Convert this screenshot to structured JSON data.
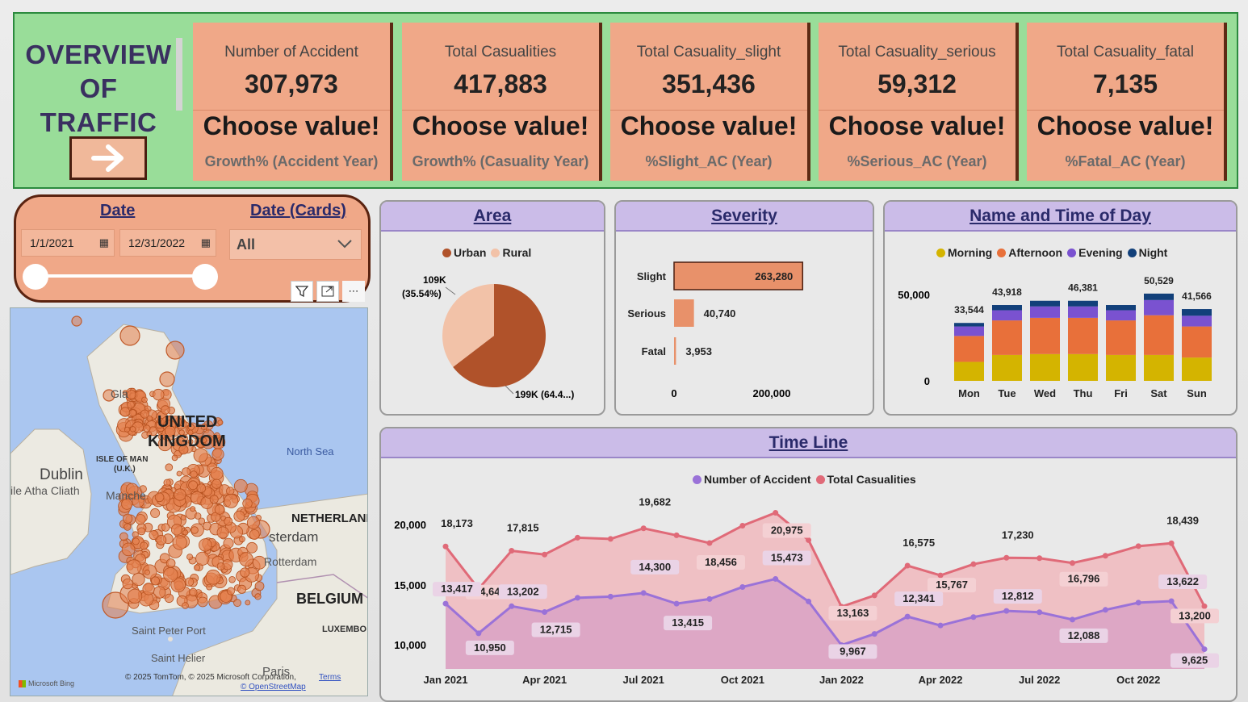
{
  "header": {
    "title_line1": "OVERVIEW",
    "title_line2": "OF TRAFFIC",
    "kpis": [
      {
        "label": "Number of Accident",
        "value": "307,973",
        "choose": "Choose value!",
        "sub": "Growth% (Accident Year)"
      },
      {
        "label": "Total Casualities",
        "value": "417,883",
        "choose": "Choose value!",
        "sub": "Growth% (Casuality Year)"
      },
      {
        "label": "Total Casuality_slight",
        "value": "351,436",
        "choose": "Choose value!",
        "sub": "%Slight_AC (Year)"
      },
      {
        "label": "Total Casuality_serious",
        "value": "59,312",
        "choose": "Choose value!",
        "sub": "%Serious_AC (Year)"
      },
      {
        "label": "Total Casuality_fatal",
        "value": "7,135",
        "choose": "Choose value!",
        "sub": "%Fatal_AC (Year)"
      }
    ]
  },
  "slicer": {
    "date_title": "Date",
    "date_cards_title": "Date (Cards)",
    "start_date": "1/1/2021",
    "end_date": "12/31/2022",
    "dropdown_value": "All"
  },
  "map": {
    "labels": {
      "uk_line1": "UNITED",
      "uk_line2": "KINGDOM",
      "north_sea": "North Sea",
      "isle_of_man": "ISLE OF MAN",
      "isle_of_man_sub": "(U.K.)",
      "dublin": "Dublin",
      "baile": "ile Atha Cliath",
      "manchester": "Manche",
      "netherlands": "NETHERLAND",
      "amsterdam": "sterdam",
      "rotterdam": "Rotterdam",
      "belgium": "BELGIUM",
      "luxembourg": "LUXEMBO",
      "st_peter": "Saint Peter Port",
      "st_helier": "Saint Helier",
      "paris": "Paris",
      "glasgow": "Gla",
      "copyright": "© 2025 TomTom, © 2025 Microsoft Corporation,",
      "terms": "Terms",
      "osm": "© OpenStreetMap",
      "bing": "Microsoft Bing"
    }
  },
  "area": {
    "title": "Area",
    "legend": [
      {
        "name": "Urban",
        "color": "#b0522a"
      },
      {
        "name": "Rural",
        "color": "#f2c2a8"
      }
    ],
    "label_rural_value": "109K",
    "label_rural_pct": "(35.54%)",
    "label_urban": "199K (64.4...)"
  },
  "severity": {
    "title": "Severity",
    "axis_ticks": [
      "0",
      "200,000"
    ]
  },
  "dow": {
    "title": "Name and Time of Day",
    "legend": [
      {
        "name": "Morning",
        "color": "#d4b400"
      },
      {
        "name": "Afternoon",
        "color": "#e8703a"
      },
      {
        "name": "Evening",
        "color": "#7a52d0"
      },
      {
        "name": "Night",
        "color": "#12407a"
      }
    ],
    "y_ticks": [
      "50,000",
      "0"
    ]
  },
  "timeline": {
    "title": "Time Line",
    "legend": [
      {
        "name": "Number of Accident",
        "color": "#9a72d8"
      },
      {
        "name": "Total Casualities",
        "color": "#e06a78"
      }
    ],
    "y_ticks": [
      "20,000",
      "15,000",
      "10,000"
    ],
    "x_ticks": [
      "Jan 2021",
      "Apr 2021",
      "Jul 2021",
      "Oct 2021",
      "Jan 2022",
      "Apr 2022",
      "Jul 2022",
      "Oct 2022"
    ]
  },
  "chart_data": [
    {
      "type": "pie",
      "title": "Area",
      "categories": [
        "Urban",
        "Rural"
      ],
      "values": [
        199000,
        109000
      ],
      "percent": [
        64.46,
        35.54
      ]
    },
    {
      "type": "bar",
      "title": "Severity",
      "orientation": "horizontal",
      "categories": [
        "Slight",
        "Serious",
        "Fatal"
      ],
      "values": [
        263280,
        40740,
        3953
      ],
      "xlim": [
        0,
        300000
      ]
    },
    {
      "type": "bar",
      "title": "Name and Time of Day",
      "stacked": true,
      "categories": [
        "Mon",
        "Tue",
        "Wed",
        "Thu",
        "Fri",
        "Sat",
        "Sun"
      ],
      "totals": [
        33544,
        43918,
        46381,
        46381,
        43918,
        50529,
        41566
      ],
      "total_labels": [
        "33,544",
        "43,918",
        "",
        "46,381",
        "",
        "50,529",
        "41,566"
      ],
      "series": [
        {
          "name": "Morning",
          "values": [
            11000,
            15000,
            15500,
            15500,
            15000,
            15000,
            13500
          ]
        },
        {
          "name": "Afternoon",
          "values": [
            15000,
            20000,
            21000,
            21000,
            20000,
            23000,
            18000
          ]
        },
        {
          "name": "Evening",
          "values": [
            5500,
            5900,
            6600,
            6600,
            5900,
            8800,
            6200
          ]
        },
        {
          "name": "Night",
          "values": [
            2044,
            3018,
            3281,
            3281,
            3018,
            3729,
            3866
          ]
        }
      ],
      "ylim": [
        0,
        55000
      ]
    },
    {
      "type": "area",
      "title": "Time Line",
      "x": [
        "Jan 2021",
        "Feb 2021",
        "Mar 2021",
        "Apr 2021",
        "May 2021",
        "Jun 2021",
        "Jul 2021",
        "Aug 2021",
        "Sep 2021",
        "Oct 2021",
        "Nov 2021",
        "Dec 2021",
        "Jan 2022",
        "Feb 2022",
        "Mar 2022",
        "Apr 2022",
        "May 2022",
        "Jun 2022",
        "Jul 2022",
        "Aug 2022",
        "Sep 2022",
        "Oct 2022",
        "Nov 2022",
        "Dec 2022"
      ],
      "series": [
        {
          "name": "Total Casualities",
          "values": [
            18173,
            14648,
            17815,
            17500,
            18900,
            18800,
            19682,
            19100,
            18456,
            19900,
            20975,
            18700,
            13163,
            14100,
            16575,
            15767,
            16700,
            17230,
            17200,
            16796,
            17400,
            18200,
            18439,
            13200
          ]
        },
        {
          "name": "Number of Accident",
          "values": [
            13417,
            10950,
            13202,
            12715,
            13900,
            14000,
            14300,
            13415,
            13800,
            14800,
            15473,
            13600,
            9967,
            10900,
            12341,
            11600,
            12300,
            12812,
            12700,
            12088,
            12900,
            13500,
            13622,
            9625
          ]
        }
      ],
      "point_labels": {
        "Total Casualities": [
          "18,173",
          "14,648",
          "17,815",
          "",
          "",
          "",
          "19,682",
          "",
          "18,456",
          "",
          "20,975",
          "",
          "13,163",
          "",
          "16,575",
          "15,767",
          "",
          "17,230",
          "",
          "16,796",
          "",
          "",
          "18,439",
          "13,200"
        ],
        "Number of Accident": [
          "13,417",
          "10,950",
          "13,202",
          "12,715",
          "",
          "",
          "14,300",
          "13,415",
          "",
          "",
          "15,473",
          "",
          "9,967",
          "",
          "12,341",
          "",
          "",
          "12,812",
          "",
          "12,088",
          "",
          "",
          "13,622",
          "9,625"
        ]
      },
      "ylim": [
        8000,
        22000
      ]
    }
  ]
}
